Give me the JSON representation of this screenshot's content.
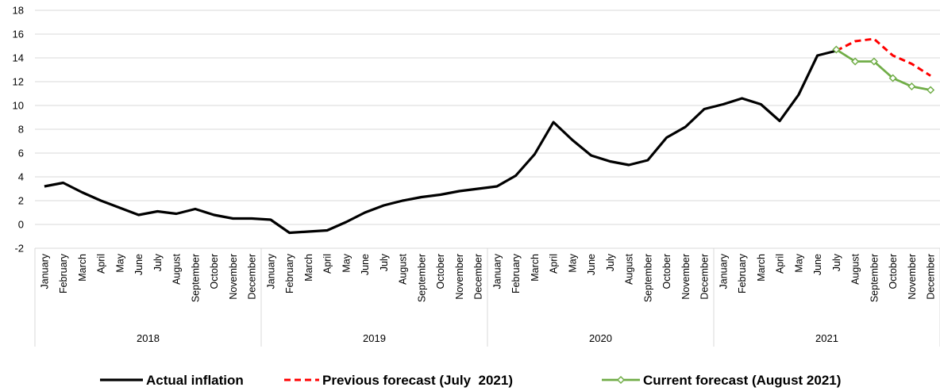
{
  "chart_data": {
    "type": "line",
    "ylim": [
      -2,
      18
    ],
    "yticks": [
      -2,
      0,
      2,
      4,
      6,
      8,
      10,
      12,
      14,
      16,
      18
    ],
    "grid": true,
    "legend_position": "bottom",
    "years": [
      {
        "label": "2018",
        "months": [
          "January",
          "February",
          "March",
          "April",
          "May",
          "June",
          "July",
          "August",
          "September",
          "October",
          "November",
          "December"
        ]
      },
      {
        "label": "2019",
        "months": [
          "January",
          "February",
          "March",
          "April",
          "May",
          "June",
          "July",
          "August",
          "September",
          "October",
          "November",
          "December"
        ]
      },
      {
        "label": "2020",
        "months": [
          "January",
          "February",
          "March",
          "April",
          "May",
          "June",
          "July",
          "August",
          "September",
          "October",
          "November",
          "December"
        ]
      },
      {
        "label": "2021",
        "months": [
          "January",
          "February",
          "March",
          "April",
          "May",
          "June",
          "July",
          "August",
          "September",
          "October",
          "November",
          "December"
        ]
      }
    ],
    "series": [
      {
        "name": "Actual inflation",
        "color": "#000000",
        "style": "solid",
        "start_index": 0,
        "values": [
          3.2,
          3.5,
          2.7,
          2.0,
          1.4,
          0.8,
          1.1,
          0.9,
          1.3,
          0.8,
          0.5,
          0.5,
          0.4,
          -0.7,
          -0.6,
          -0.5,
          0.2,
          1.0,
          1.6,
          2.0,
          2.3,
          2.5,
          2.8,
          3.0,
          3.2,
          4.1,
          5.9,
          8.6,
          7.1,
          5.8,
          5.3,
          5.0,
          5.4,
          7.3,
          8.2,
          9.7,
          10.1,
          10.6,
          10.1,
          8.7,
          10.9,
          14.2,
          14.6
        ]
      },
      {
        "name": "Previous forecast (July  2021)",
        "color": "#ff0000",
        "style": "dashed",
        "start_index": 42,
        "values": [
          14.6,
          15.4,
          15.6,
          14.2,
          13.5,
          12.5
        ]
      },
      {
        "name": "Current forecast (August 2021)",
        "color": "#70ad47",
        "style": "solid-markers",
        "start_index": 42,
        "values": [
          14.7,
          13.7,
          13.7,
          12.3,
          11.6,
          11.3
        ]
      }
    ]
  }
}
